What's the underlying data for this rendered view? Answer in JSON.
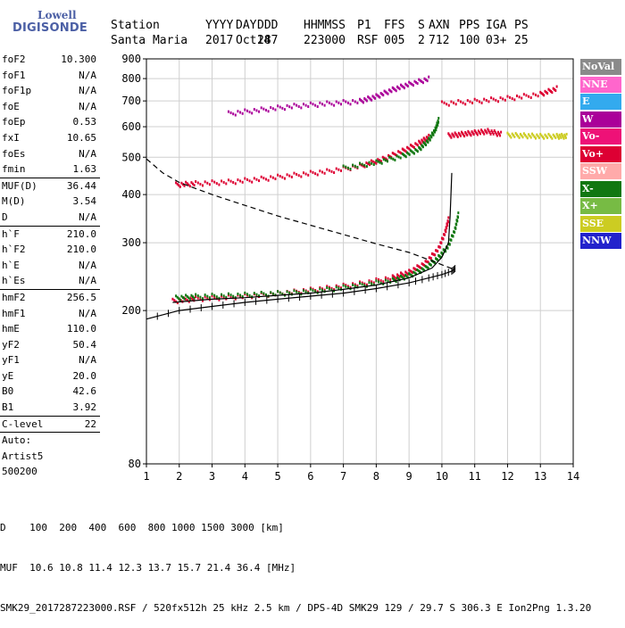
{
  "logo": {
    "line1": "Lowell",
    "line2": "DIGISONDE"
  },
  "header": {
    "titles": [
      "Station",
      "YYYY",
      "DAY",
      "DDD",
      "HHMMSS",
      "P1",
      "FFS",
      "S",
      "AXN",
      "PPS",
      "IGA",
      "PS"
    ],
    "values": [
      "Santa Maria",
      "2017",
      "Oct14",
      "287",
      "223000",
      "RSF",
      "005",
      "2",
      "712",
      "100",
      "03+",
      "25"
    ]
  },
  "params": [
    {
      "name": "foF2",
      "value": "10.300"
    },
    {
      "name": "foF1",
      "value": "N/A"
    },
    {
      "name": "foF1p",
      "value": "N/A"
    },
    {
      "name": "foE",
      "value": "N/A"
    },
    {
      "name": "foEp",
      "value": "0.53"
    },
    {
      "name": "fxI",
      "value": "10.65"
    },
    {
      "name": "foEs",
      "value": "N/A"
    },
    {
      "name": "fmin",
      "value": "1.63"
    },
    {
      "name": "MUF(D)",
      "value": "36.44",
      "sep": true
    },
    {
      "name": "M(D)",
      "value": "3.54"
    },
    {
      "name": "D",
      "value": "N/A"
    },
    {
      "name": "h`F",
      "value": "210.0",
      "sep": true
    },
    {
      "name": "h`F2",
      "value": "210.0"
    },
    {
      "name": "h`E",
      "value": "N/A"
    },
    {
      "name": "h`Es",
      "value": "N/A"
    },
    {
      "name": "hmF2",
      "value": "256.5",
      "sep": true
    },
    {
      "name": "hmF1",
      "value": "N/A"
    },
    {
      "name": "hmE",
      "value": "110.0"
    },
    {
      "name": "yF2",
      "value": "50.4"
    },
    {
      "name": "yF1",
      "value": "N/A"
    },
    {
      "name": "yE",
      "value": "20.0"
    },
    {
      "name": "B0",
      "value": "42.6"
    },
    {
      "name": "B1",
      "value": "3.92"
    },
    {
      "name": "C-level",
      "value": "22",
      "sep": true
    },
    {
      "name": "Auto:",
      "value": "",
      "sep": true
    },
    {
      "name": "Artist5",
      "value": ""
    },
    {
      "name": "500200",
      "value": ""
    }
  ],
  "legend": [
    {
      "label": "NoVal",
      "color": "#8a8a8a"
    },
    {
      "label": "NNE",
      "color": "#ff66cc"
    },
    {
      "label": "E",
      "color": "#33aaee"
    },
    {
      "label": "W",
      "color": "#aa0099"
    },
    {
      "label": "Vo-",
      "color": "#ee1177"
    },
    {
      "label": "Vo+",
      "color": "#dd0033"
    },
    {
      "label": "SSW",
      "color": "#ffaaaa"
    },
    {
      "label": "X-",
      "color": "#117711"
    },
    {
      "label": "X+",
      "color": "#77bb44"
    },
    {
      "label": "SSE",
      "color": "#cccc22"
    },
    {
      "label": "NNW",
      "color": "#2222cc"
    }
  ],
  "footer": {
    "distance_line": "D    100  200  400  600  800 1000 1500 3000 [km]",
    "muf_line": "MUF  10.6 10.8 11.4 12.3 13.7 15.7 21.4 36.4 [MHz]",
    "file_line": "SMK29_2017287223000.RSF / 520fx512h 25 kHz 2.5 km / DPS-4D SMK29 129 / 29.7 S 306.3 E Ion2Png 1.3.20"
  },
  "chart_data": {
    "type": "scatter",
    "title": "",
    "xlabel": "",
    "ylabel": "",
    "xlim": [
      1,
      14
    ],
    "ylim": [
      80,
      900
    ],
    "y_scale": "log",
    "x_ticks": [
      1,
      2,
      3,
      4,
      5,
      6,
      7,
      8,
      9,
      10,
      11,
      12,
      13,
      14
    ],
    "y_ticks": [
      80,
      200,
      300,
      400,
      500,
      600,
      700,
      800,
      900
    ],
    "grid": true,
    "series": [
      {
        "color": "#dd0033",
        "points": [
          [
            1.8,
            212
          ],
          [
            2.5,
            215
          ],
          [
            3.5,
            217
          ],
          [
            4.5,
            220
          ],
          [
            5.5,
            224
          ],
          [
            6.5,
            229
          ],
          [
            7.5,
            235
          ],
          [
            8.5,
            244
          ],
          [
            9.0,
            252
          ],
          [
            9.5,
            266
          ],
          [
            9.9,
            290
          ],
          [
            10.1,
            320
          ],
          [
            10.2,
            345
          ]
        ]
      },
      {
        "color": "#117711",
        "points": [
          [
            1.9,
            216
          ],
          [
            2.5,
            218
          ],
          [
            3.5,
            219
          ],
          [
            4.5,
            221
          ],
          [
            5.5,
            223
          ],
          [
            6.5,
            227
          ],
          [
            7.5,
            233
          ],
          [
            8.5,
            240
          ],
          [
            9.0,
            247
          ],
          [
            9.5,
            258
          ],
          [
            9.9,
            275
          ],
          [
            10.2,
            295
          ],
          [
            10.4,
            325
          ],
          [
            10.5,
            355
          ]
        ]
      },
      {
        "color": "#dd0033",
        "points": [
          [
            1.9,
            425
          ],
          [
            2.5,
            428
          ],
          [
            3.5,
            432
          ],
          [
            4.5,
            440
          ],
          [
            5.5,
            450
          ],
          [
            6.5,
            460
          ],
          [
            7.5,
            475
          ],
          [
            8.2,
            495
          ],
          [
            8.8,
            520
          ],
          [
            9.3,
            545
          ],
          [
            9.6,
            565
          ]
        ]
      },
      {
        "color": "#117711",
        "points": [
          [
            7.0,
            470
          ],
          [
            8.0,
            485
          ],
          [
            8.8,
            505
          ],
          [
            9.3,
            525
          ],
          [
            9.6,
            555
          ],
          [
            9.8,
            590
          ],
          [
            9.9,
            625
          ]
        ]
      },
      {
        "color": "#aa0099",
        "points": [
          [
            3.5,
            650
          ],
          [
            4.5,
            665
          ],
          [
            5.5,
            680
          ],
          [
            6.5,
            690
          ],
          [
            7.5,
            700
          ],
          [
            8.0,
            720
          ],
          [
            8.5,
            750
          ],
          [
            9.0,
            775
          ],
          [
            9.6,
            800
          ]
        ]
      },
      {
        "color": "#dd0033",
        "points": [
          [
            10.0,
            690
          ],
          [
            11.0,
            700
          ],
          [
            12.0,
            712
          ],
          [
            13.0,
            730
          ],
          [
            13.5,
            755
          ]
        ]
      },
      {
        "color": "#dd0033",
        "points": [
          [
            10.2,
            570
          ],
          [
            10.6,
            575
          ],
          [
            11.0,
            580
          ],
          [
            11.4,
            585
          ],
          [
            11.8,
            575
          ]
        ]
      },
      {
        "color": "#cccc22",
        "points": [
          [
            12.0,
            572
          ],
          [
            12.5,
            570
          ],
          [
            13.0,
            568
          ],
          [
            13.5,
            568
          ],
          [
            13.8,
            568
          ]
        ]
      }
    ],
    "profile": {
      "color": "#000000",
      "points": [
        [
          1.0,
          190
        ],
        [
          2.0,
          200
        ],
        [
          3.0,
          205
        ],
        [
          4.0,
          210
        ],
        [
          5.0,
          214
        ],
        [
          6.0,
          218
        ],
        [
          7.0,
          222
        ],
        [
          8.0,
          228
        ],
        [
          9.0,
          236
        ],
        [
          9.6,
          243
        ],
        [
          10.0,
          248
        ],
        [
          10.3,
          253
        ],
        [
          10.4,
          257
        ]
      ]
    },
    "profile_dashed": {
      "color": "#000000",
      "points": [
        [
          1.0,
          495
        ],
        [
          1.5,
          455
        ],
        [
          2.0,
          430
        ],
        [
          3.0,
          400
        ],
        [
          4.0,
          375
        ],
        [
          5.0,
          352
        ],
        [
          6.0,
          333
        ],
        [
          7.0,
          315
        ],
        [
          8.0,
          298
        ],
        [
          9.0,
          283
        ],
        [
          9.8,
          267
        ],
        [
          10.3,
          257
        ]
      ]
    },
    "trace_fit": {
      "color": "#000000",
      "points": [
        [
          1.8,
          210
        ],
        [
          3.0,
          214
        ],
        [
          4.0,
          216
        ],
        [
          5.0,
          219
        ],
        [
          6.0,
          222
        ],
        [
          7.0,
          227
        ],
        [
          8.0,
          233
        ],
        [
          9.0,
          243
        ],
        [
          9.7,
          258
        ],
        [
          10.0,
          275
        ],
        [
          10.2,
          300
        ],
        [
          10.25,
          350
        ],
        [
          10.3,
          455
        ]
      ]
    }
  }
}
